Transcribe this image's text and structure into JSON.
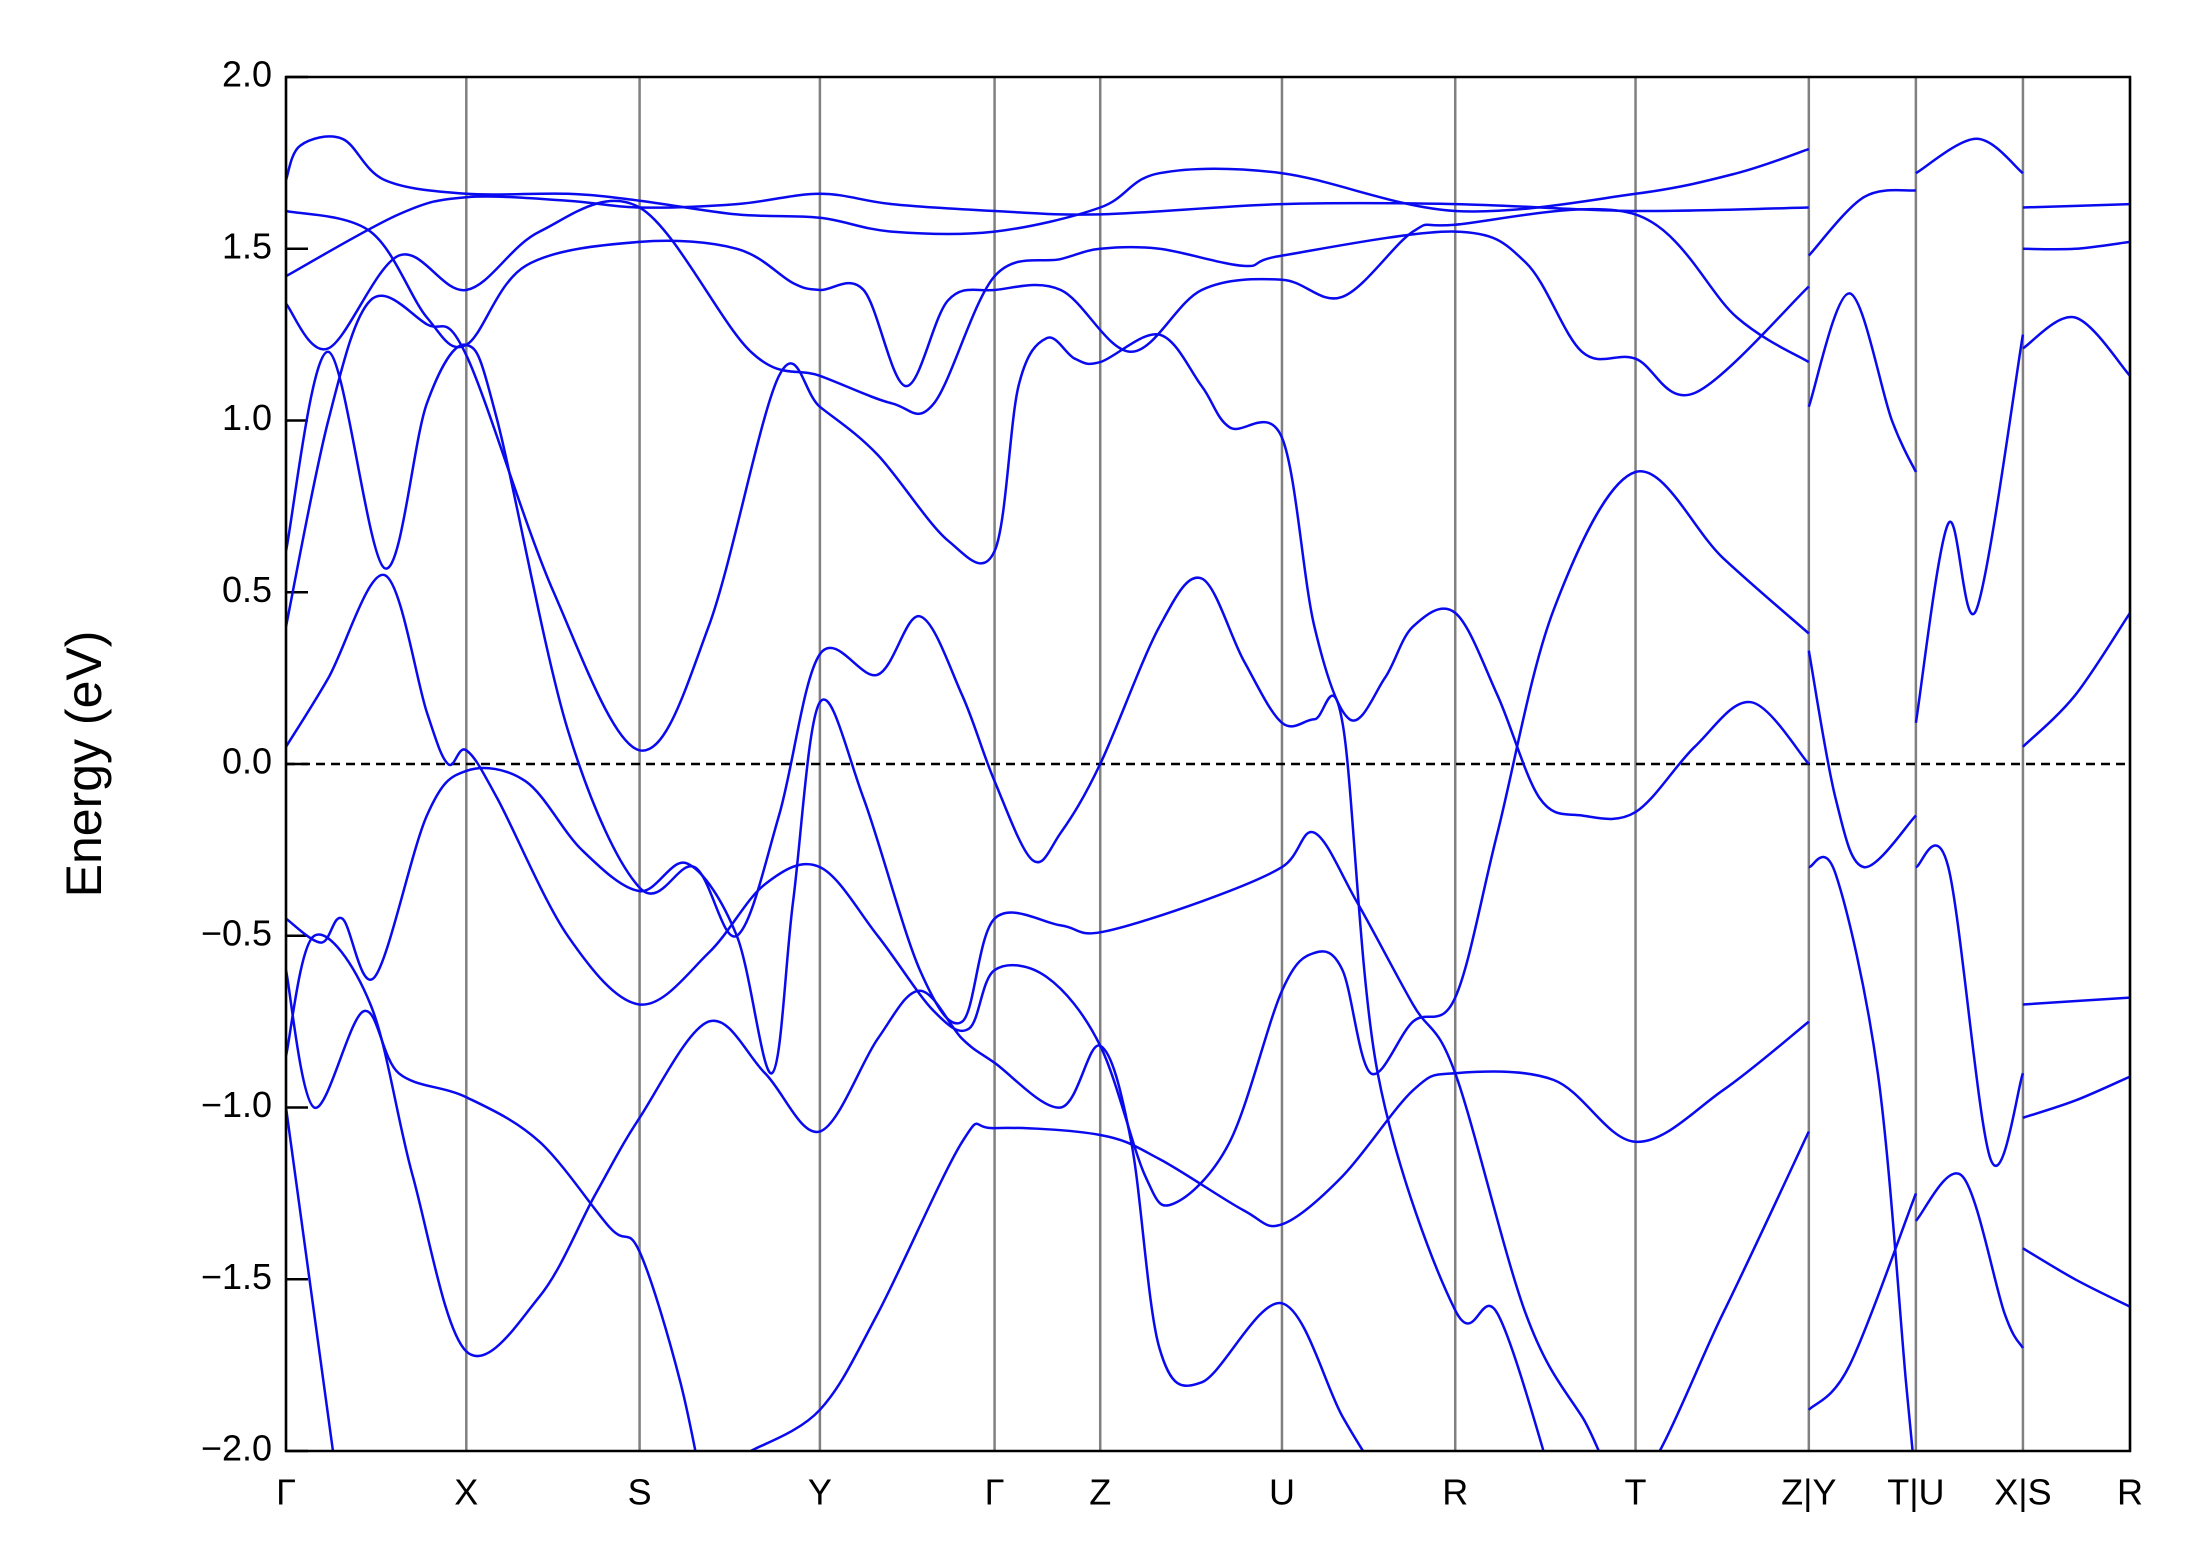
{
  "chart_data": {
    "type": "line",
    "y_label": "Energy (eV)",
    "color": "#0a0aee",
    "xlim": [
      0,
      13.09
    ],
    "ylim": [
      -2,
      2
    ],
    "xticks": [
      {
        "value": 0,
        "label": "Γ"
      },
      {
        "value": 1.28,
        "label": "X"
      },
      {
        "value": 2.51,
        "label": "S"
      },
      {
        "value": 3.79,
        "label": "Y"
      },
      {
        "value": 5.03,
        "label": "Γ"
      },
      {
        "value": 5.78,
        "label": "Z"
      },
      {
        "value": 7.07,
        "label": "U"
      },
      {
        "value": 8.3,
        "label": "R"
      },
      {
        "value": 9.58,
        "label": "T"
      },
      {
        "value": 10.81,
        "label": "Z|Y"
      },
      {
        "value": 11.57,
        "label": "T|U"
      },
      {
        "value": 12.33,
        "label": "X|S"
      },
      {
        "value": 13.09,
        "label": "R"
      }
    ],
    "yticks": [
      {
        "value": -2,
        "label": "−2.0"
      },
      {
        "value": -1.5,
        "label": "−1.5"
      },
      {
        "value": -1,
        "label": "−1.0"
      },
      {
        "value": -0.5,
        "label": "−0.5"
      },
      {
        "value": 0,
        "label": "0.0"
      },
      {
        "value": 0.5,
        "label": "0.5"
      },
      {
        "value": 1,
        "label": "1.0"
      },
      {
        "value": 1.5,
        "label": "1.5"
      },
      {
        "value": 2,
        "label": "2.0"
      }
    ],
    "series": [
      {
        "x": [
          0,
          0.3,
          0.7,
          1.0,
          1.15,
          1.28,
          1.5,
          2.0,
          2.51,
          3.0,
          3.4,
          3.79,
          4.2,
          4.6,
          4.85,
          5.03,
          5.4,
          5.78,
          6.1,
          6.3,
          6.7,
          7.07,
          7.3,
          7.5,
          7.7,
          8.0,
          8.3,
          8.6,
          9.0,
          9.58,
          10.2,
          10.81
        ],
        "values": [
          0.05,
          0.25,
          0.55,
          0.15,
          0.0,
          0.04,
          -0.1,
          -0.5,
          -0.7,
          -0.55,
          -0.35,
          -0.3,
          -0.5,
          -0.72,
          -0.77,
          -0.6,
          -0.62,
          -0.82,
          -1.2,
          -1.28,
          -1.1,
          -0.66,
          -0.55,
          -0.6,
          -0.9,
          -0.75,
          -0.68,
          -0.2,
          0.45,
          0.85,
          0.6,
          0.38
        ]
      },
      {
        "x": [
          0,
          0.3,
          0.6,
          1.0,
          1.28,
          1.9,
          2.51,
          3.0,
          3.5,
          3.79,
          4.2,
          4.7,
          5.03,
          5.2,
          5.4,
          5.6,
          5.78,
          6.2,
          6.5,
          6.7,
          7.07,
          7.3,
          7.55,
          7.8,
          8.0,
          8.3,
          8.6,
          8.9,
          9.2,
          9.58,
          10.0,
          10.4,
          10.81
        ],
        "values": [
          0.4,
          1.0,
          1.35,
          1.28,
          1.19,
          0.5,
          0.04,
          0.4,
          1.13,
          1.04,
          0.9,
          0.65,
          0.62,
          1.1,
          1.24,
          1.18,
          1.17,
          1.25,
          1.1,
          0.98,
          0.95,
          0.4,
          0.13,
          0.25,
          0.4,
          0.44,
          0.2,
          -0.1,
          -0.15,
          -0.14,
          0.05,
          0.18,
          0.0
        ]
      },
      {
        "x": [
          0,
          0.3,
          0.7,
          1.0,
          1.28,
          1.5,
          2.0,
          2.51,
          2.9,
          3.2,
          3.5,
          3.79,
          4.2,
          4.5,
          4.8,
          5.03,
          5.3,
          5.5,
          5.78,
          6.2,
          6.5,
          6.8,
          7.07,
          7.3,
          7.5,
          7.75,
          8.3,
          8.6,
          9.0
        ],
        "values": [
          0.62,
          1.2,
          0.57,
          1.05,
          1.22,
          1.0,
          0.1,
          -0.36,
          -0.3,
          -0.5,
          -0.15,
          0.32,
          0.26,
          0.43,
          0.2,
          -0.05,
          -0.28,
          -0.2,
          0.0,
          0.4,
          0.54,
          0.3,
          0.12,
          0.13,
          0.12,
          -0.9,
          -1.59,
          -1.6,
          -2.1
        ]
      },
      {
        "x": [
          0,
          0.25,
          0.4,
          0.63,
          1.0,
          1.28,
          1.7,
          2.1,
          2.51,
          2.85,
          3.2,
          3.45,
          3.6,
          3.79,
          4.1,
          4.5,
          4.8,
          5.03,
          5.5,
          5.78,
          6.5,
          7.07,
          7.3,
          7.6,
          8.0,
          8.3,
          8.8,
          9.2,
          9.58,
          10.2,
          10.81
        ],
        "values": [
          -0.45,
          -0.52,
          -0.45,
          -0.62,
          -0.15,
          -0.02,
          -0.05,
          -0.25,
          -0.37,
          -0.29,
          -0.5,
          -0.9,
          -0.4,
          0.18,
          -0.1,
          -0.6,
          -0.75,
          -0.45,
          -0.47,
          -0.49,
          -0.4,
          -0.3,
          -0.2,
          -0.4,
          -0.7,
          -0.9,
          -1.6,
          -1.9,
          -2.1,
          -1.6,
          -1.07
        ]
      },
      {
        "x": [
          0,
          0.2,
          0.55,
          0.8,
          1.28,
          1.8,
          2.3,
          2.51,
          2.8,
          3.0
        ],
        "values": [
          -0.6,
          -1.0,
          -0.72,
          -0.9,
          -0.97,
          -1.1,
          -1.35,
          -1.42,
          -1.8,
          -2.2
        ]
      },
      {
        "x": [
          3.3,
          3.79,
          4.2,
          4.8,
          5.03,
          5.78,
          6.2,
          6.8,
          7.07,
          7.5,
          8.0,
          8.3,
          9.0,
          9.58,
          10.2,
          10.81
        ],
        "values": [
          -2.0,
          -1.88,
          -1.6,
          -1.1,
          -1.06,
          -1.08,
          -1.15,
          -1.3,
          -1.34,
          -1.2,
          -0.95,
          -0.9,
          -0.92,
          -1.1,
          -0.95,
          -0.75
        ]
      },
      {
        "x": [
          0,
          0.2,
          0.6,
          0.9,
          1.28,
          1.8,
          2.2,
          2.51,
          3.0,
          3.4,
          3.79,
          4.2,
          4.5,
          4.8,
          5.03,
          5.5,
          5.78,
          6.0,
          6.2,
          6.5,
          7.07,
          7.5,
          7.8
        ],
        "values": [
          -0.85,
          -0.5,
          -0.7,
          -1.2,
          -1.71,
          -1.55,
          -1.25,
          -1.03,
          -0.75,
          -0.9,
          -1.07,
          -0.8,
          -0.66,
          -0.8,
          -0.87,
          -1.0,
          -0.82,
          -1.1,
          -1.7,
          -1.8,
          -1.57,
          -1.9,
          -2.1
        ]
      },
      {
        "x": [
          0,
          0.8,
          1.28,
          2.0,
          2.51,
          3.2,
          3.79,
          4.3,
          5.03,
          5.78,
          7.07,
          8.3,
          9.58,
          10.81
        ],
        "values": [
          1.42,
          1.6,
          1.65,
          1.64,
          1.62,
          1.63,
          1.66,
          1.63,
          1.61,
          1.6,
          1.63,
          1.63,
          1.61,
          1.62
        ]
      },
      {
        "x": [
          0,
          0.6,
          1.0,
          1.28,
          1.7,
          2.51,
          3.2,
          3.6,
          3.79,
          4.1,
          4.4,
          4.7,
          5.03,
          5.5,
          6.0,
          6.5,
          7.07,
          7.5,
          8.0,
          8.3,
          9.58,
          10.3,
          10.81
        ],
        "values": [
          1.61,
          1.55,
          1.3,
          1.22,
          1.45,
          1.52,
          1.5,
          1.4,
          1.38,
          1.38,
          1.1,
          1.35,
          1.38,
          1.38,
          1.2,
          1.38,
          1.41,
          1.36,
          1.55,
          1.57,
          1.6,
          1.3,
          1.17
        ]
      },
      {
        "x": [
          0,
          0.3,
          0.8,
          1.28,
          1.8,
          2.51,
          3.3,
          3.79,
          4.3,
          4.6,
          5.03,
          5.5,
          5.78,
          6.2,
          6.8,
          7.07,
          8.3,
          8.8,
          9.2,
          9.58,
          10.0,
          10.81
        ],
        "values": [
          1.34,
          1.21,
          1.48,
          1.38,
          1.55,
          1.62,
          1.2,
          1.13,
          1.05,
          1.05,
          1.42,
          1.47,
          1.5,
          1.5,
          1.45,
          1.48,
          1.55,
          1.46,
          1.2,
          1.18,
          1.08,
          1.39
        ]
      },
      {
        "x": [
          0,
          0.1,
          0.4,
          0.7,
          1.28,
          2.0,
          2.51,
          3.2,
          3.79,
          4.3,
          5.03,
          5.78,
          6.2,
          7.07,
          8.3,
          9.58,
          10.3,
          10.81
        ],
        "values": [
          1.7,
          1.8,
          1.82,
          1.7,
          1.66,
          1.66,
          1.64,
          1.6,
          1.59,
          1.55,
          1.55,
          1.62,
          1.72,
          1.72,
          1.61,
          1.66,
          1.72,
          1.79
        ]
      },
      {
        "x": [
          0,
          0.35
        ],
        "values": [
          -1.0,
          -2.05
        ]
      },
      {
        "x": [
          10.81,
          11.0,
          11.2,
          11.57
        ],
        "values": [
          0.33,
          -0.1,
          -0.3,
          -0.15
        ]
      },
      {
        "x": [
          10.81,
          11.1,
          11.4,
          11.57
        ],
        "values": [
          1.04,
          1.37,
          1.0,
          0.85
        ]
      },
      {
        "x": [
          10.81,
          11.2,
          11.57
        ],
        "values": [
          1.48,
          1.65,
          1.67
        ]
      },
      {
        "x": [
          10.81,
          11.0,
          11.3,
          11.5,
          11.57
        ],
        "values": [
          -0.3,
          -0.32,
          -0.9,
          -1.8,
          -2.1
        ]
      },
      {
        "x": [
          10.81,
          11.1,
          11.57
        ],
        "values": [
          -1.88,
          -1.75,
          -1.25
        ]
      },
      {
        "x": [
          11.57,
          11.8,
          12.0,
          12.33
        ],
        "values": [
          0.12,
          0.7,
          0.45,
          1.25
        ]
      },
      {
        "x": [
          11.57,
          11.8,
          12.1,
          12.33
        ],
        "values": [
          -0.3,
          -0.3,
          -1.15,
          -0.9
        ]
      },
      {
        "x": [
          11.57,
          12.0,
          12.33
        ],
        "values": [
          1.72,
          1.82,
          1.72
        ]
      },
      {
        "x": [
          11.57,
          11.9,
          12.2,
          12.33
        ],
        "values": [
          -1.33,
          -1.2,
          -1.6,
          -1.7
        ]
      },
      {
        "x": [
          12.33,
          12.7,
          13.09
        ],
        "values": [
          0.05,
          0.2,
          0.44
        ]
      },
      {
        "x": [
          12.33,
          13.09
        ],
        "values": [
          -0.7,
          -0.68
        ]
      },
      {
        "x": [
          12.33,
          12.7,
          13.09
        ],
        "values": [
          -1.03,
          -0.98,
          -0.91
        ]
      },
      {
        "x": [
          12.33,
          12.7,
          13.09
        ],
        "values": [
          -1.41,
          -1.5,
          -1.58
        ]
      },
      {
        "x": [
          12.33,
          12.7,
          13.09
        ],
        "values": [
          1.5,
          1.5,
          1.52
        ]
      },
      {
        "x": [
          12.33,
          13.09
        ],
        "values": [
          1.62,
          1.63
        ]
      },
      {
        "x": [
          12.33,
          12.7,
          13.09
        ],
        "values": [
          1.21,
          1.3,
          1.13
        ]
      }
    ]
  }
}
